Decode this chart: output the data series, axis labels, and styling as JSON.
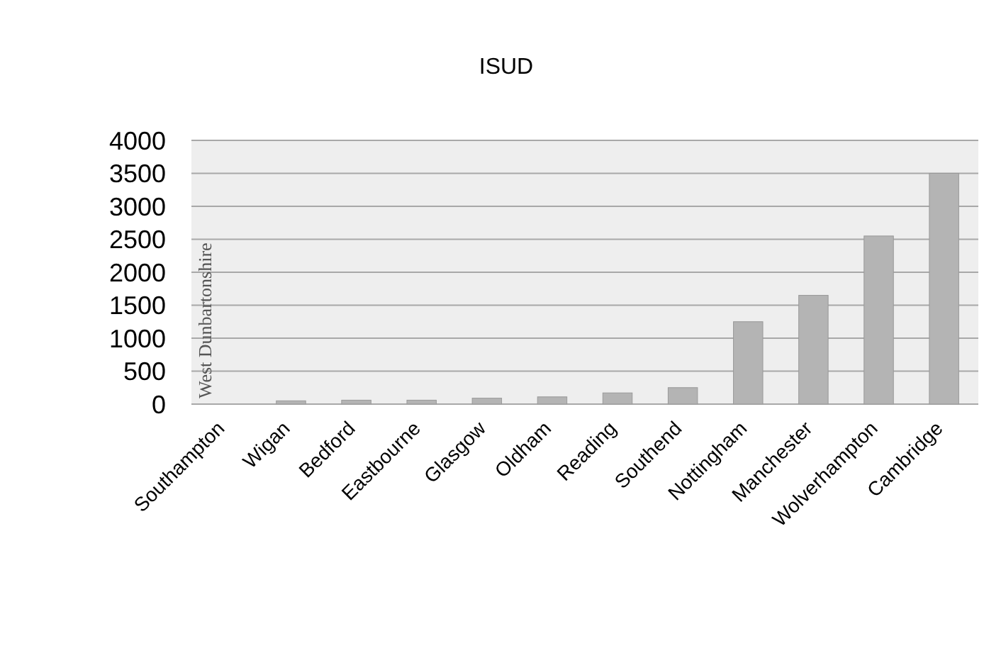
{
  "chart_data": {
    "type": "bar",
    "title": "ISUD",
    "categories": [
      "Southampton",
      "Wigan",
      "Bedford",
      "Eastbourne",
      "Glasgow",
      "Oldham",
      "Reading",
      "Southend",
      "Nottingham",
      "Manchester",
      "Wolverhampton",
      "Cambridge"
    ],
    "values": [
      null,
      50,
      60,
      60,
      90,
      110,
      170,
      250,
      1250,
      1650,
      2550,
      3500
    ],
    "color": "#b4b4b4",
    "ylim": [
      0,
      4000
    ],
    "yticks": [
      0,
      500,
      1000,
      1500,
      2000,
      2500,
      3000,
      3500,
      4000
    ],
    "grid": "y",
    "annotations": [
      "West Dunbartonshire"
    ]
  }
}
